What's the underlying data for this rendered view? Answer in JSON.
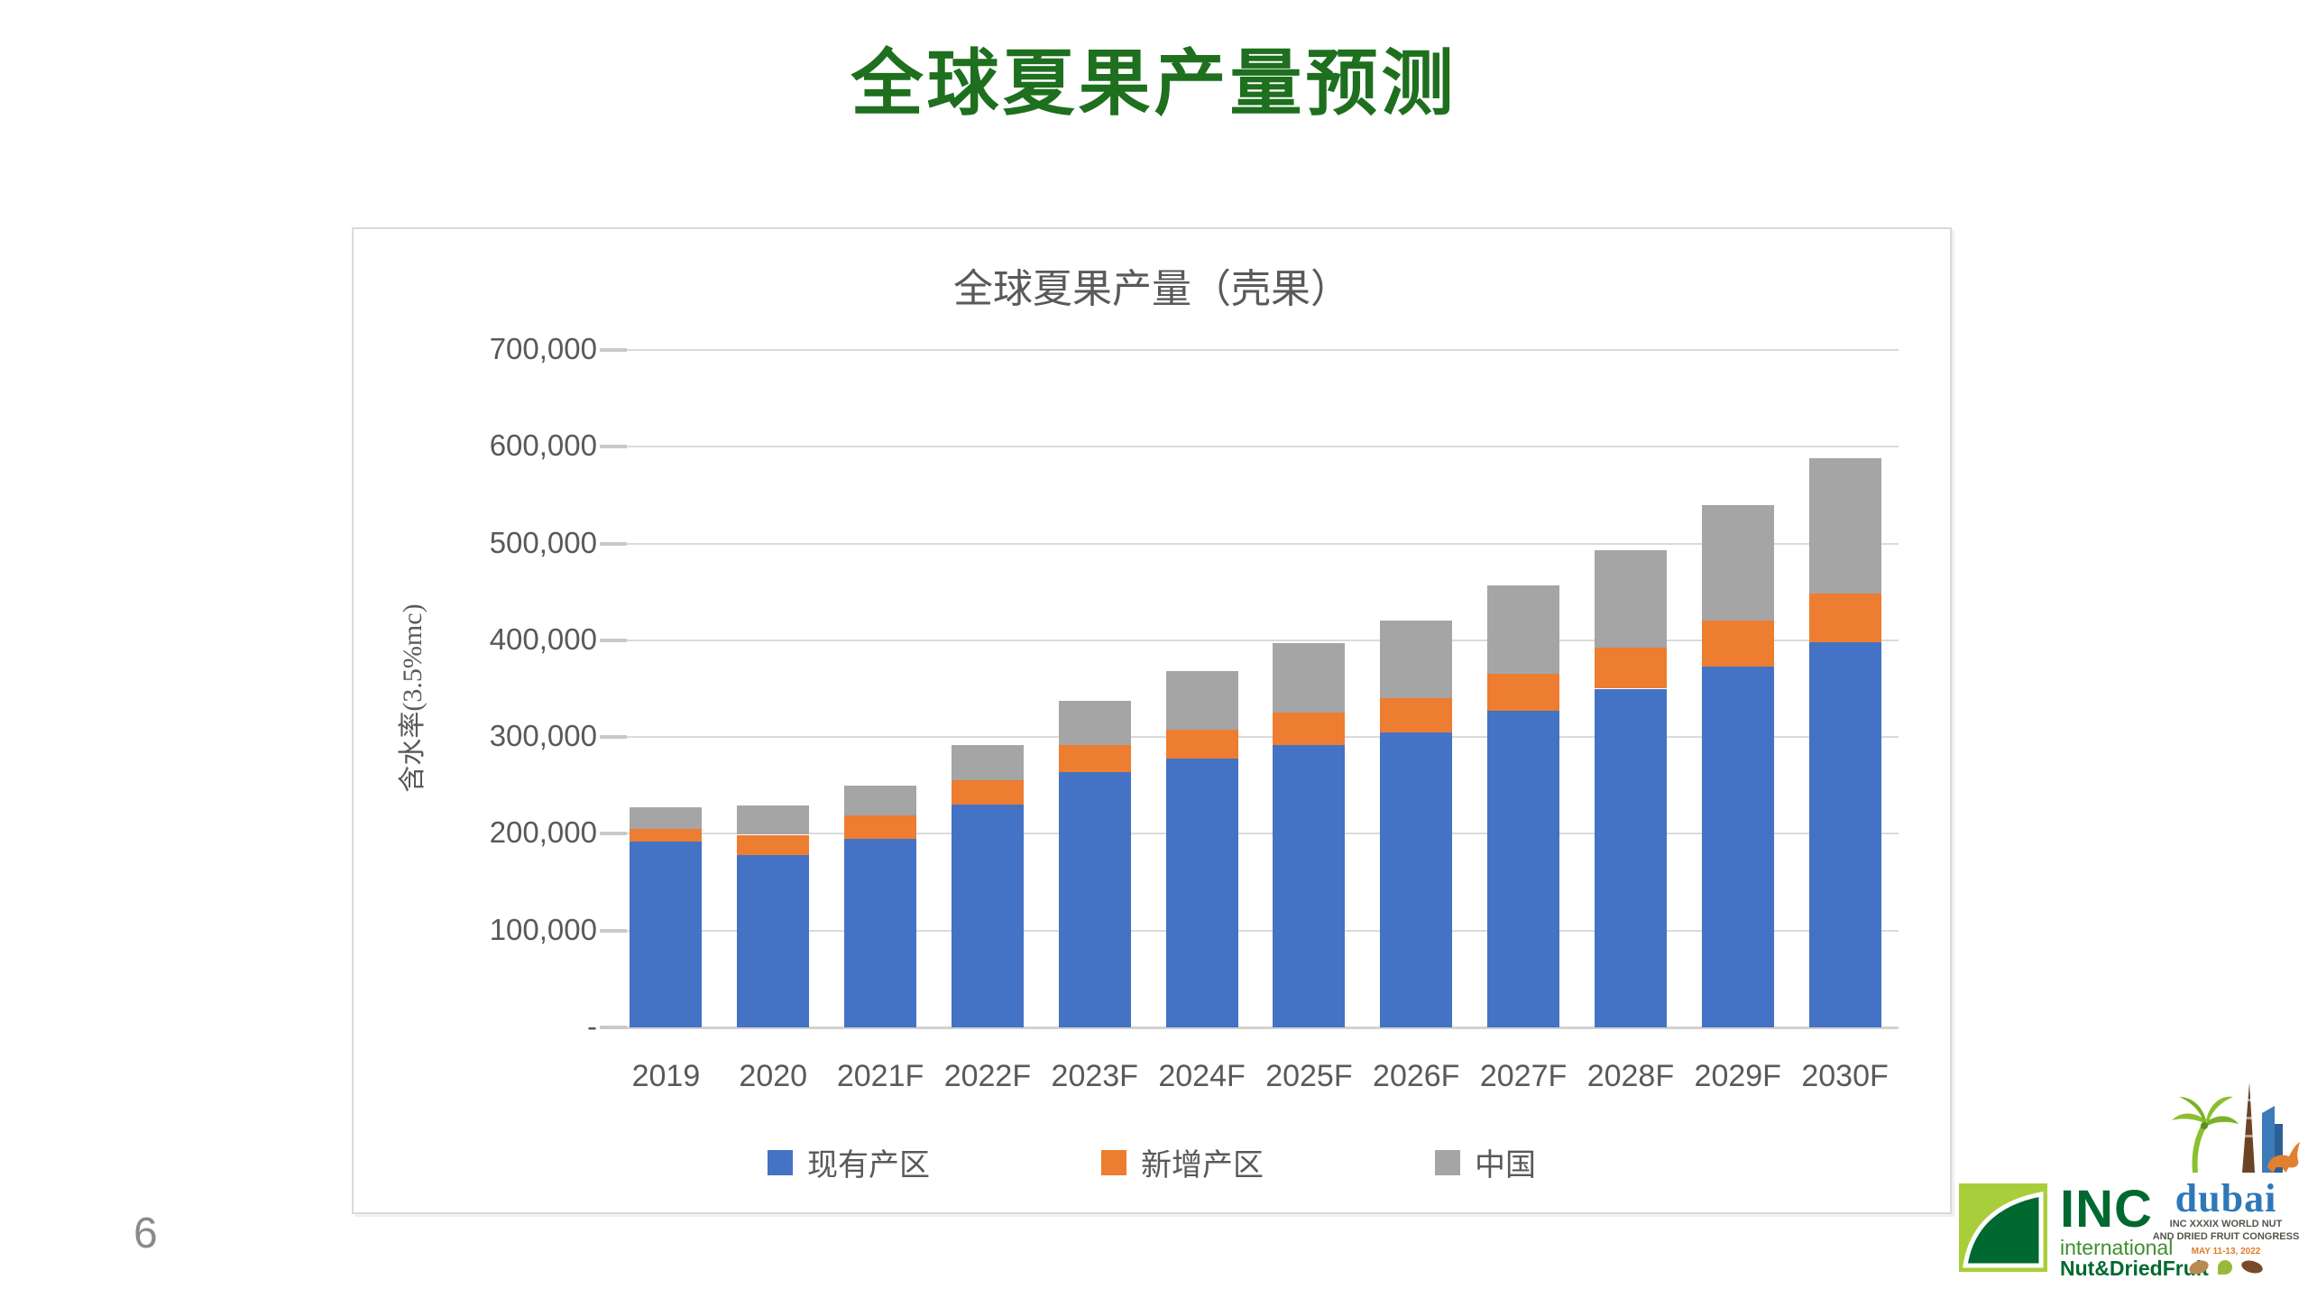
{
  "page": {
    "number": "6"
  },
  "slide_title": "全球夏果产量预测",
  "colors": {
    "title_green": "#1e6f1e",
    "axis_text": "#595959",
    "gridline": "#dbdbdb",
    "series_existing": "#4472C4",
    "series_new": "#ED7D31",
    "series_china": "#A5A5A5"
  },
  "chart_data": {
    "type": "bar",
    "stacked": true,
    "title": "全球夏果产量（壳果）",
    "xlabel": "",
    "ylabel": "含水率(3.5%mc)",
    "categories": [
      "2019",
      "2020",
      "2021F",
      "2022F",
      "2023F",
      "2024F",
      "2025F",
      "2026F",
      "2027F",
      "2028F",
      "2029F",
      "2030F"
    ],
    "series": [
      {
        "name": "现有产区",
        "color": "#4472C4",
        "values": [
          192000,
          178000,
          195000,
          230000,
          264000,
          278000,
          292000,
          305000,
          327000,
          350000,
          373000,
          398000
        ]
      },
      {
        "name": "新增产区",
        "color": "#ED7D31",
        "values": [
          13000,
          21000,
          24000,
          25000,
          28000,
          30000,
          33000,
          35000,
          38000,
          42000,
          47000,
          50000
        ]
      },
      {
        "name": "中国",
        "color": "#A5A5A5",
        "values": [
          22000,
          30000,
          31000,
          37000,
          45000,
          60000,
          72000,
          80000,
          92000,
          101000,
          120000,
          140000
        ]
      }
    ],
    "totals": [
      227000,
      229000,
      250000,
      292000,
      337000,
      368000,
      397000,
      420000,
      457000,
      493000,
      540000,
      588000
    ],
    "ylim": [
      0,
      700000
    ],
    "ytick_step": 100000,
    "y_tick_labels": [
      "-",
      "100,000",
      "200,000",
      "300,000",
      "400,000",
      "500,000",
      "600,000",
      "700,000"
    ],
    "grid": true,
    "legend_position": "bottom"
  },
  "logos": {
    "inc": {
      "name": "INC",
      "line1": "international",
      "line2": "Nut&DriedFruit"
    },
    "dubai": {
      "word": "dubai",
      "line1": "INC XXXIX WORLD NUT",
      "line2": "AND DRIED FRUIT CONGRESS",
      "line3": "MAY 11-13, 2022"
    }
  }
}
